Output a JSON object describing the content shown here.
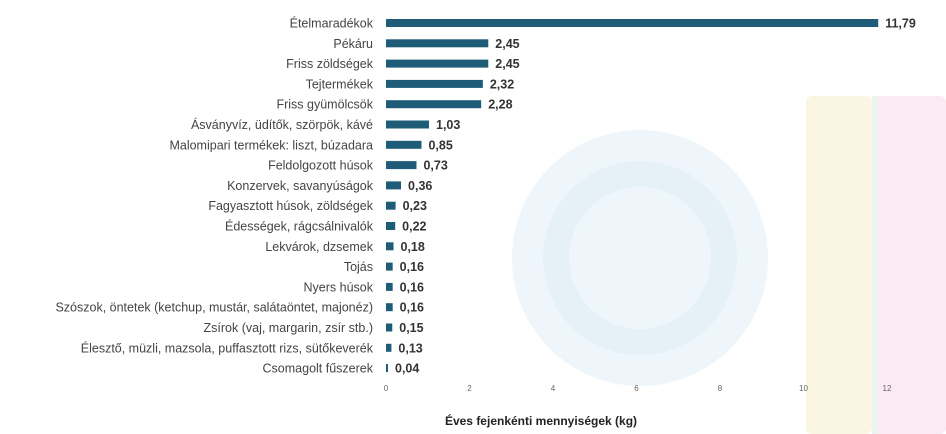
{
  "chart_data": {
    "type": "bar",
    "orientation": "horizontal",
    "categories": [
      "Ételmaradékok",
      "Pékáru",
      "Friss zöldségek",
      "Tejtermékek",
      "Friss gyümölcsök",
      "Ásványvíz, üdítők, szörpök, kávé",
      "Malomipari termékek: liszt, búzadara",
      "Feldolgozott húsok",
      "Konzervek, savanyúságok",
      "Fagyasztott húsok, zöldségek",
      "Édességek, rágcsálnivalók",
      "Lekvárok, dzsemek",
      "Tojás",
      "Nyers húsok",
      "Szószok, öntetek (ketchup, mustár, salátaöntet, majonéz)",
      "Zsírok (vaj, margarin, zsír stb.)",
      "Élesztő, müzli, mazsola, puffasztott rizs, sütőkeverék",
      "Csomagolt fűszerek"
    ],
    "values": [
      11.79,
      2.45,
      2.45,
      2.32,
      2.28,
      1.03,
      0.85,
      0.73,
      0.36,
      0.23,
      0.22,
      0.18,
      0.16,
      0.16,
      0.16,
      0.15,
      0.13,
      0.04
    ],
    "value_labels": [
      "11,79",
      "2,45",
      "2,45",
      "2,32",
      "2,28",
      "1,03",
      "0,85",
      "0,73",
      "0,36",
      "0,23",
      "0,22",
      "0,18",
      "0,16",
      "0,16",
      "0,16",
      "0,15",
      "0,13",
      "0,04"
    ],
    "xticks": [
      0,
      2,
      4,
      6,
      8,
      10,
      12
    ],
    "xtick_labels": [
      "0",
      "2",
      "4",
      "6",
      "8",
      "10",
      "12"
    ],
    "xlim": [
      0,
      12
    ],
    "xlabel": "Éves fejenkénti mennyiségek (kg)",
    "title": "",
    "grid": false,
    "legend": "none",
    "bar_color": "#1f5c78"
  }
}
